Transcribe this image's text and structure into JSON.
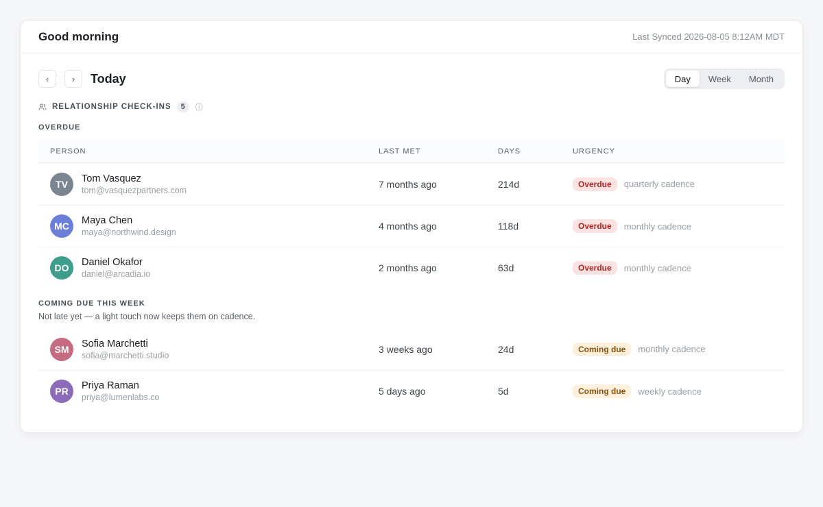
{
  "header": {
    "title": "Good morning",
    "sync": "Last Synced 2026-08-05 8:12AM MDT"
  },
  "nav": {
    "prev": "‹",
    "next": "›",
    "title": "Today",
    "tabs": [
      "Day",
      "Week",
      "Month"
    ],
    "active_tab": 0
  },
  "section": {
    "title": "RELATIONSHIP CHECK-INS",
    "count": 5
  },
  "table": {
    "columns": [
      "PERSON",
      "LAST MET",
      "DAYS",
      "URGENCY"
    ]
  },
  "groups": [
    {
      "title": "OVERDUE",
      "rows": [
        {
          "initials": "TV",
          "color": "#7b8591",
          "name": "Tom Vasquez",
          "email": "tom@vasquezpartners.com",
          "last_met": "7 months ago",
          "days": "214d",
          "badge": "Overdue",
          "cadence": "quarterly cadence"
        },
        {
          "initials": "MC",
          "color": "#6b7fd7",
          "name": "Maya Chen",
          "email": "maya@northwind.design",
          "last_met": "4 months ago",
          "days": "118d",
          "badge": "Overdue",
          "cadence": "monthly cadence"
        },
        {
          "initials": "DO",
          "color": "#3f9d8b",
          "name": "Daniel Okafor",
          "email": "daniel@arcadia.io",
          "last_met": "2 months ago",
          "days": "63d",
          "badge": "Overdue",
          "cadence": "monthly cadence"
        }
      ]
    },
    {
      "title": "COMING DUE THIS WEEK",
      "note": "Not late yet — a light touch now keeps them on cadence.",
      "rows": [
        {
          "initials": "SM",
          "color": "#c56b82",
          "name": "Sofia Marchetti",
          "email": "sofia@marchetti.studio",
          "last_met": "3 weeks ago",
          "days": "24d",
          "badge": "Coming due",
          "cadence": "monthly cadence"
        },
        {
          "initials": "PR",
          "color": "#8a6cb9",
          "name": "Priya Raman",
          "email": "priya@lumenlabs.co",
          "last_met": "5 days ago",
          "days": "5d",
          "badge": "Coming due",
          "cadence": "weekly cadence"
        }
      ]
    }
  ]
}
